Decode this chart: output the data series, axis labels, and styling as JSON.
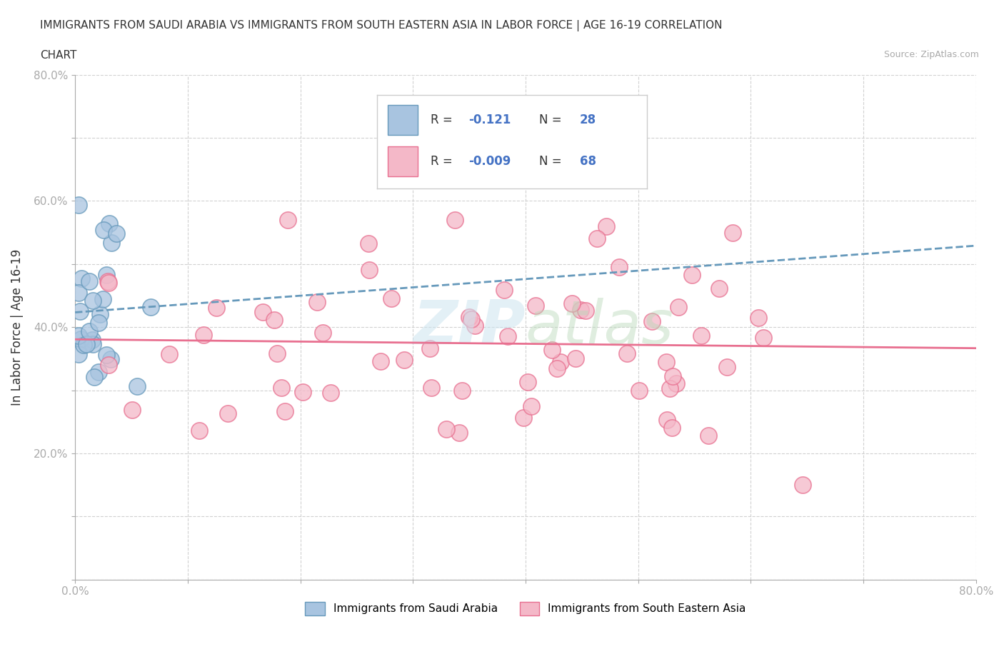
{
  "title_line1": "IMMIGRANTS FROM SAUDI ARABIA VS IMMIGRANTS FROM SOUTH EASTERN ASIA IN LABOR FORCE | AGE 16-19 CORRELATION",
  "title_line2": "CHART",
  "source": "Source: ZipAtlas.com",
  "ylabel": "In Labor Force | Age 16-19",
  "xlim": [
    0.0,
    0.8
  ],
  "ylim": [
    0.0,
    0.8
  ],
  "xticks": [
    0.0,
    0.1,
    0.2,
    0.3,
    0.4,
    0.5,
    0.6,
    0.7,
    0.8
  ],
  "xticklabels": [
    "0.0%",
    "",
    "",
    "",
    "",
    "",
    "",
    "",
    "80.0%"
  ],
  "yticks": [
    0.0,
    0.1,
    0.2,
    0.3,
    0.4,
    0.5,
    0.6,
    0.7,
    0.8
  ],
  "yticklabels": [
    "",
    "",
    "20.0%",
    "",
    "40.0%",
    "",
    "60.0%",
    "",
    "80.0%"
  ],
  "legend_labels": [
    "Immigrants from Saudi Arabia",
    "Immigrants from South Eastern Asia"
  ],
  "R_saudi": -0.121,
  "N_saudi": 28,
  "R_sea": -0.009,
  "N_sea": 68,
  "color_saudi": "#a8c4e0",
  "color_sea": "#f4b8c8",
  "trendline_saudi_color": "#6699bb",
  "trendline_sea_color": "#e87090",
  "background_color": "#ffffff"
}
